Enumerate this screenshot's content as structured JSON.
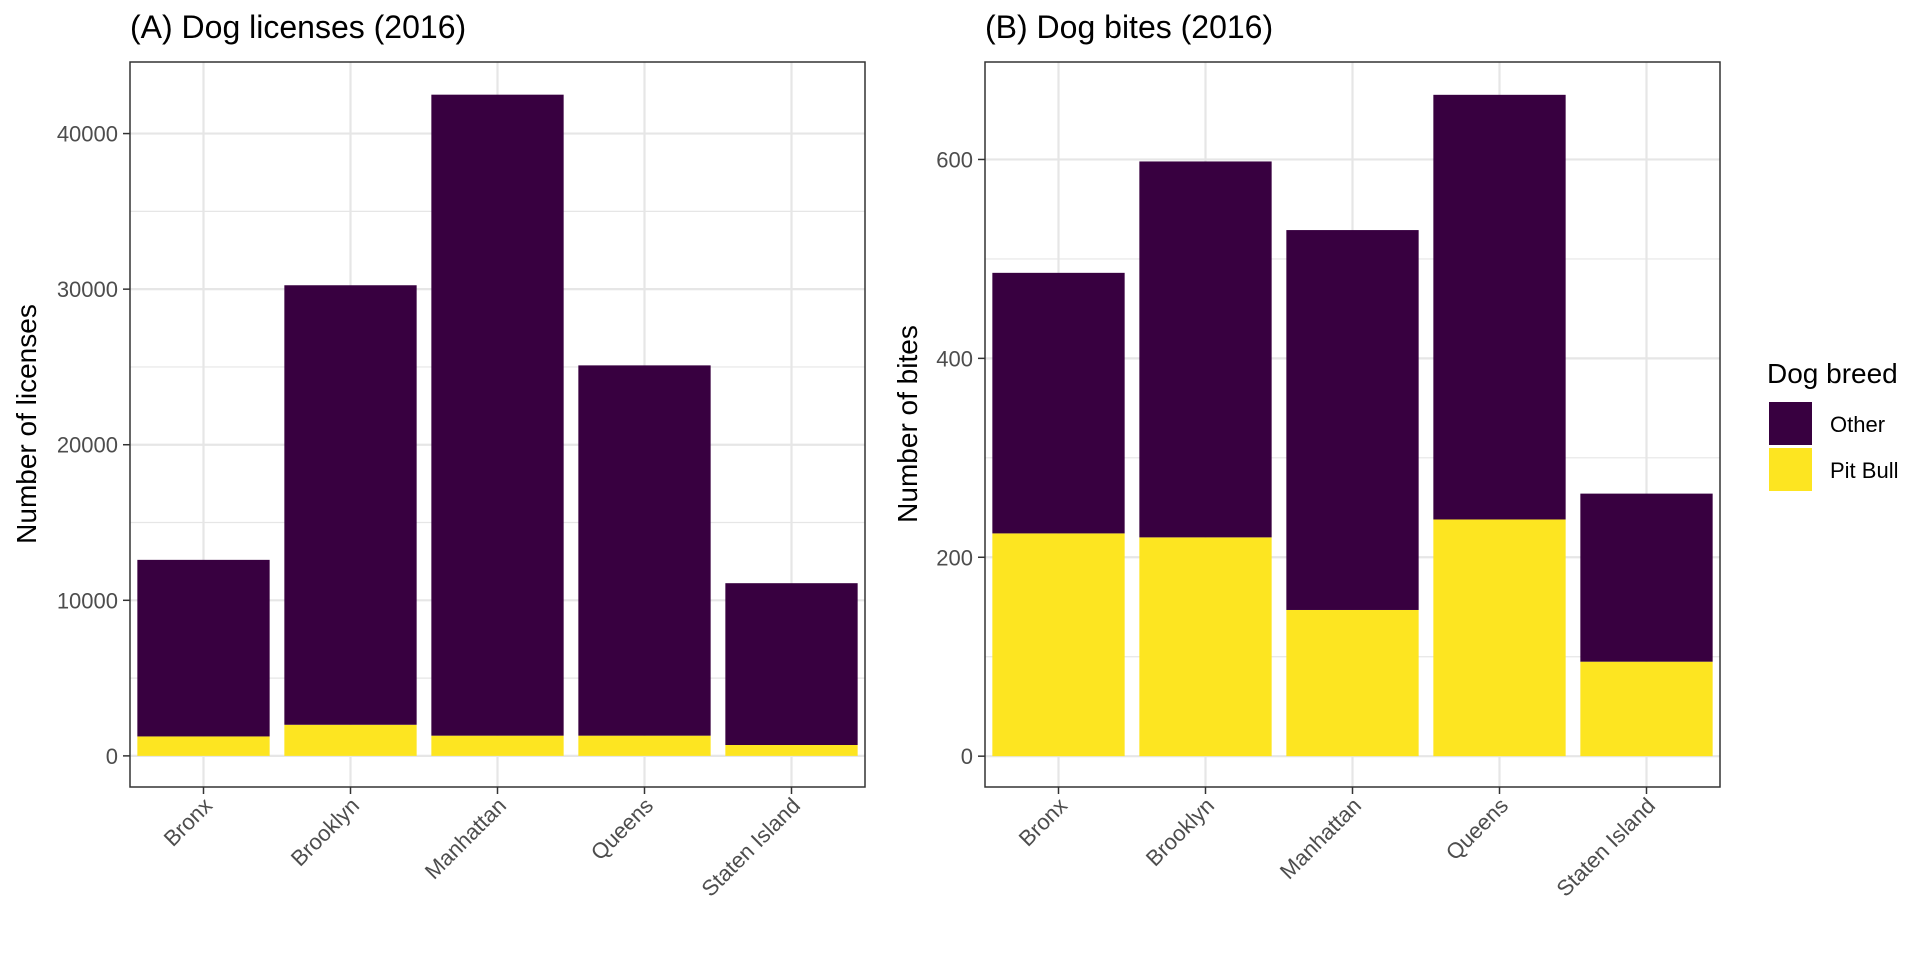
{
  "colors": {
    "other": "#380040",
    "pit_bull": "#FDE521",
    "grid": "#e6e6e6",
    "panel_border": "#333333"
  },
  "legend": {
    "title": "Dog breed",
    "items": [
      {
        "label": "Other",
        "color": "#380040"
      },
      {
        "label": "Pit Bull",
        "color": "#FDE521"
      }
    ]
  },
  "chart_data": [
    {
      "type": "bar",
      "stacked": true,
      "title": "(A) Dog licenses (2016)",
      "xlabel": "",
      "ylabel": "Number of licenses",
      "categories": [
        "Bronx",
        "Brooklyn",
        "Manhattan",
        "Queens",
        "Staten Island"
      ],
      "yticks": [
        0,
        10000,
        20000,
        30000,
        40000
      ],
      "ylim": [
        -2000,
        44600
      ],
      "grid": true,
      "series": [
        {
          "name": "Pit Bull",
          "values": [
            1250,
            2000,
            1300,
            1300,
            700
          ]
        },
        {
          "name": "Other",
          "values": [
            11350,
            28250,
            41200,
            23800,
            10400
          ]
        }
      ]
    },
    {
      "type": "bar",
      "stacked": true,
      "title": "(B) Dog bites (2016)",
      "xlabel": "",
      "ylabel": "Number of bites",
      "categories": [
        "Bronx",
        "Brooklyn",
        "Manhattan",
        "Queens",
        "Staten Island"
      ],
      "yticks": [
        0,
        200,
        400,
        600
      ],
      "ylim": [
        -31,
        698
      ],
      "grid": true,
      "series": [
        {
          "name": "Pit Bull",
          "values": [
            224,
            220,
            147,
            238,
            95
          ]
        },
        {
          "name": "Other",
          "values": [
            262,
            378,
            382,
            427,
            169
          ]
        }
      ]
    }
  ]
}
